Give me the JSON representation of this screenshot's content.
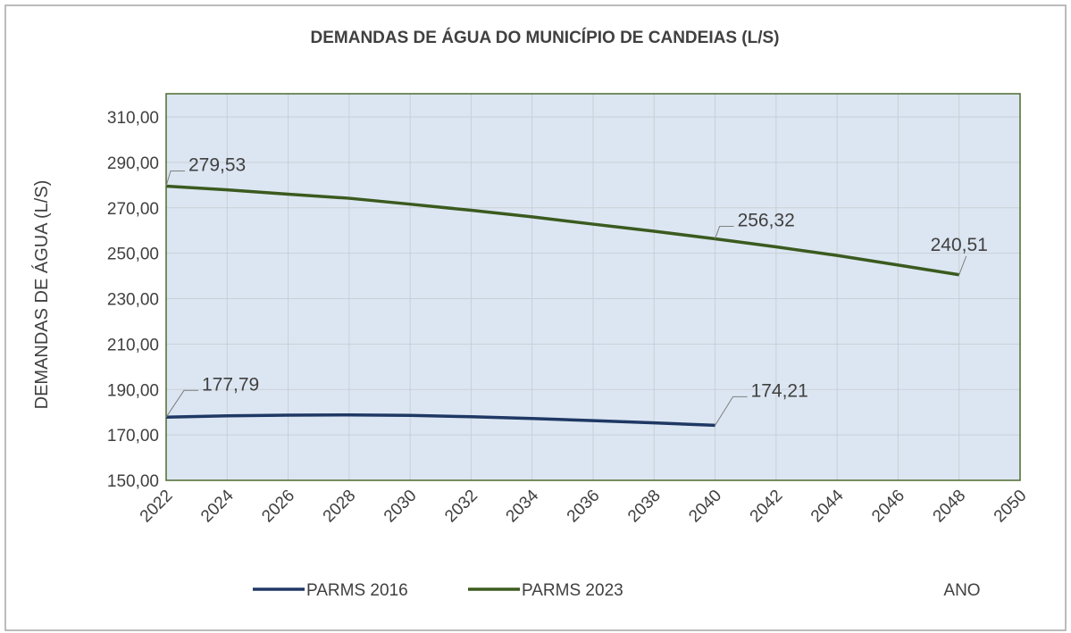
{
  "chart_data": {
    "type": "line",
    "title": "DEMANDAS DE ÁGUA DO MUNICÍPIO DE CANDEIAS (L/S)",
    "x_label": "ANO",
    "y_label": "DEMANDAS DE ÁGUA (L/S)",
    "x": [
      2022,
      2024,
      2026,
      2028,
      2030,
      2032,
      2034,
      2036,
      2038,
      2040,
      2042,
      2044,
      2046,
      2048
    ],
    "series": [
      {
        "name": "PARMS 2016",
        "color": "#1f3864",
        "values": [
          177.79,
          178.4,
          178.7,
          178.8,
          178.6,
          178.0,
          177.2,
          176.3,
          175.3,
          174.21,
          null,
          null,
          null,
          null
        ],
        "value_labels": [
          "177,79",
          null,
          null,
          null,
          null,
          null,
          null,
          null,
          null,
          "174,21",
          null,
          null,
          null,
          null
        ]
      },
      {
        "name": "PARMS 2023",
        "color": "#3b5a1f",
        "values": [
          279.53,
          277.9,
          276.0,
          274.2,
          271.6,
          268.9,
          266.0,
          262.8,
          259.7,
          256.32,
          252.8,
          249.0,
          244.8,
          240.51
        ],
        "value_labels": [
          "279,53",
          null,
          null,
          null,
          null,
          null,
          null,
          null,
          null,
          "256,32",
          null,
          null,
          null,
          "240,51"
        ]
      }
    ],
    "xlim": [
      2022,
      2050
    ],
    "xticks": [
      2022,
      2024,
      2026,
      2028,
      2030,
      2032,
      2034,
      2036,
      2038,
      2040,
      2042,
      2044,
      2046,
      2048,
      2050
    ],
    "ylim": [
      150,
      310
    ],
    "yticks": [
      {
        "value": 150,
        "label": "150,00"
      },
      {
        "value": 170,
        "label": "170,00"
      },
      {
        "value": 190,
        "label": "190,00"
      },
      {
        "value": 210,
        "label": "210,00"
      },
      {
        "value": 230,
        "label": "230,00"
      },
      {
        "value": 250,
        "label": "250,00"
      },
      {
        "value": 270,
        "label": "270,00"
      },
      {
        "value": 290,
        "label": "290,00"
      },
      {
        "value": 310,
        "label": "310,00"
      }
    ],
    "grid": true,
    "legend": "bottom"
  }
}
